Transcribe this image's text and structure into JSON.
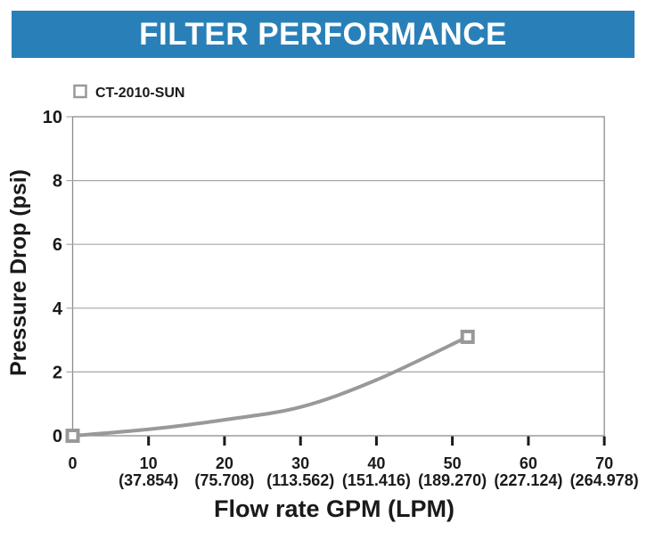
{
  "banner": {
    "title": "FILTER PERFORMANCE",
    "bg_color": "#2980b9",
    "text_color": "#ffffff"
  },
  "legend": {
    "series_label": "CT-2010-SUN",
    "marker": "open-square-icon",
    "marker_color": "#999999",
    "position": "top-left"
  },
  "chart_data": {
    "type": "line",
    "title": "FILTER PERFORMANCE",
    "xlabel": "Flow rate GPM (LPM)",
    "ylabel": "Pressure Drop (psi)",
    "xlim": [
      0,
      70
    ],
    "ylim": [
      0,
      10
    ],
    "grid": "horizontal",
    "gridline_color": "#a6a6a6",
    "axis_color": "#8c8c8c",
    "legend_position": "top-left",
    "series": [
      {
        "name": "CT-2010-SUN",
        "color": "#999999",
        "marker": "open-square",
        "marker_points": [
          {
            "gpm": 0,
            "psi": 0
          },
          {
            "gpm": 52,
            "psi": 3.1
          }
        ],
        "curve": [
          [
            0,
            0
          ],
          [
            10,
            0.2
          ],
          [
            20,
            0.5
          ],
          [
            30,
            0.9
          ],
          [
            40,
            1.75
          ],
          [
            52,
            3.1
          ]
        ]
      }
    ],
    "x_ticks": [
      {
        "gpm": "0",
        "lpm": ""
      },
      {
        "gpm": "10",
        "lpm": "(37.854)"
      },
      {
        "gpm": "20",
        "lpm": "(75.708)"
      },
      {
        "gpm": "30",
        "lpm": "(113.562)"
      },
      {
        "gpm": "40",
        "lpm": "(151.416)"
      },
      {
        "gpm": "50",
        "lpm": "(189.270)"
      },
      {
        "gpm": "60",
        "lpm": "(227.124)"
      },
      {
        "gpm": "70",
        "lpm": "(264.978)"
      }
    ],
    "y_ticks": [
      "0",
      "2",
      "4",
      "6",
      "8",
      "10"
    ]
  }
}
